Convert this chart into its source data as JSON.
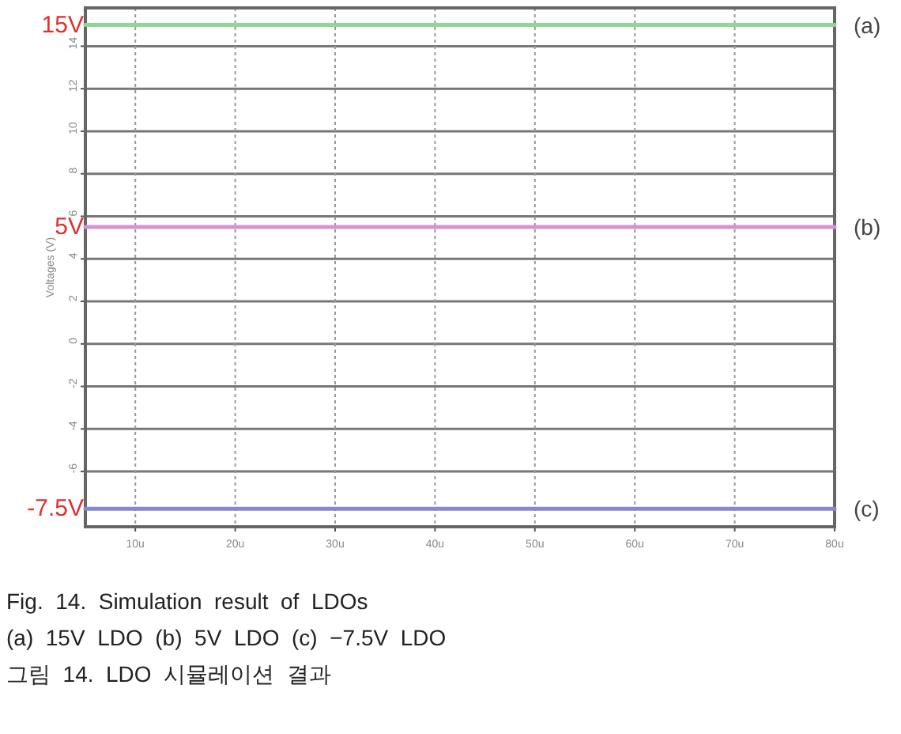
{
  "chart_data": {
    "type": "line",
    "ylabel": "Voltages (V)",
    "x": [
      5,
      80
    ],
    "series": [
      {
        "name": "(a)",
        "color": "#90d890",
        "values": [
          15,
          15
        ]
      },
      {
        "name": "(b)",
        "color": "#d890d8",
        "values": [
          5.5,
          5.5
        ]
      },
      {
        "name": "(c)",
        "color": "#8888cc",
        "values": [
          -7.75,
          -7.75
        ]
      }
    ],
    "xlim": [
      5,
      80
    ],
    "xticks": [
      {
        "value": 10,
        "label": "10u"
      },
      {
        "value": 20,
        "label": "20u"
      },
      {
        "value": 30,
        "label": "30u"
      },
      {
        "value": 40,
        "label": "40u"
      },
      {
        "value": 50,
        "label": "50u"
      },
      {
        "value": 60,
        "label": "60u"
      },
      {
        "value": 70,
        "label": "70u"
      },
      {
        "value": 80,
        "label": "80u"
      }
    ],
    "ylim": [
      -8.6,
      15.8
    ],
    "yticks": [
      -6,
      -4,
      -2,
      0,
      2,
      4,
      6,
      8,
      10,
      12,
      14
    ],
    "grid": true,
    "annotations": [
      "15V",
      "5V",
      "-7.5V",
      "Fig.  14.  Simulation  result  of  LDOs",
      "(a)  15V  LDO  (b)  5V  LDO  (c)  −7.5V  LDO",
      "그림  14.  LDO  시뮬레이션  결과"
    ]
  }
}
